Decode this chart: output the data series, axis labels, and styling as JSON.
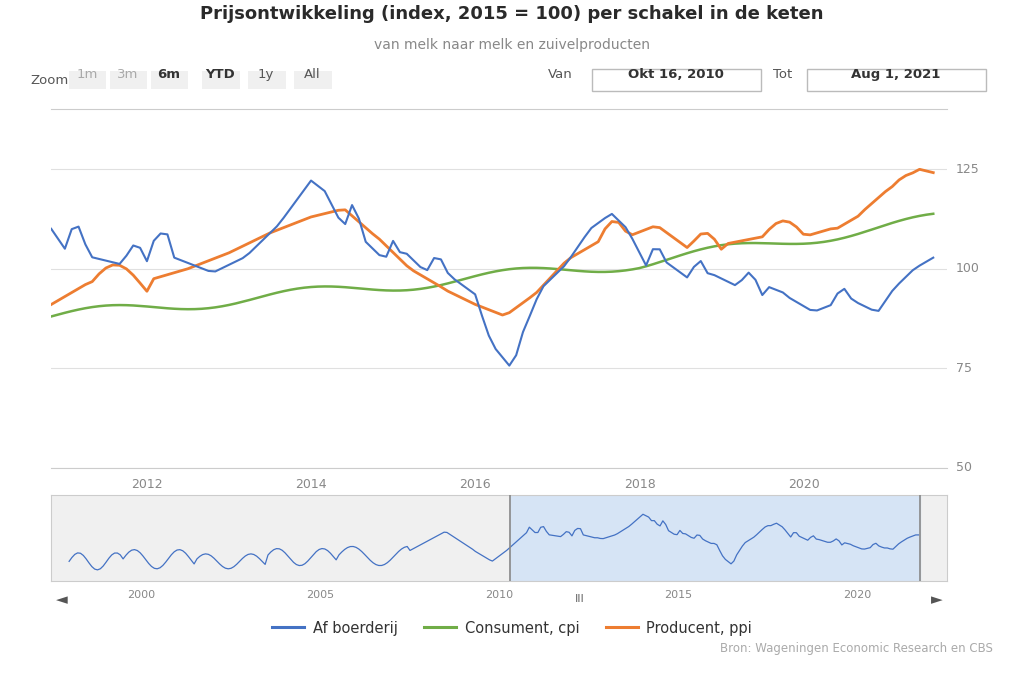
{
  "title": "Prijsontwikkeling (index, 2015 = 100) per schakel in de keten",
  "subtitle": "van melk naar melk en zuivelproducten",
  "zoom_label": "Zoom",
  "zoom_options": [
    "1m",
    "3m",
    "6m",
    "YTD",
    "1y",
    "All"
  ],
  "van_label": "Van",
  "tot_label": "Tot",
  "van_value": "Okt 16, 2010",
  "tot_value": "Aug 1, 2021",
  "source": "Bron: Wageningen Economic Research en CBS",
  "legend": [
    "Af boerderij",
    "Consument, cpi",
    "Producent, ppi"
  ],
  "colors": {
    "af_boerderij": "#4472C4",
    "consument": "#70AD47",
    "producent": "#ED7D31"
  },
  "background_color": "#ffffff",
  "grid_color": "#e8e8e8",
  "axis_color": "#cccccc"
}
